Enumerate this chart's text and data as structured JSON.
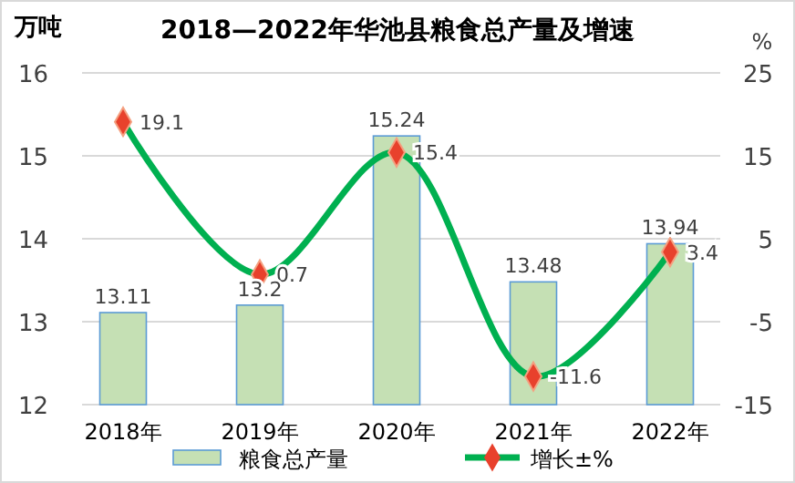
{
  "chart_data": {
    "type": "bar",
    "title": "2018—2022年华池县粮食总产量及增速",
    "ylabel": "万吨",
    "y2label": "%",
    "categories": [
      "2018年",
      "2019年",
      "2020年",
      "2021年",
      "2022年"
    ],
    "series": [
      {
        "name": "粮食总产量",
        "color": "#c5e0b4",
        "values": [
          13.11,
          13.2,
          15.24,
          13.48,
          13.94
        ]
      },
      {
        "name": "增长±%",
        "type": "line",
        "axis": "y2",
        "color": "#00b050",
        "marker": "diamond",
        "values": [
          19.1,
          0.7,
          15.4,
          -11.6,
          3.4
        ]
      }
    ],
    "ylim": [
      12,
      16
    ],
    "yticks": [
      12,
      13,
      14,
      15,
      16
    ],
    "y2lim": [
      -15,
      25
    ],
    "y2ticks": [
      -15,
      -5,
      5,
      15,
      25
    ],
    "grid": "y",
    "legend": "bottom",
    "data_labels": true
  }
}
